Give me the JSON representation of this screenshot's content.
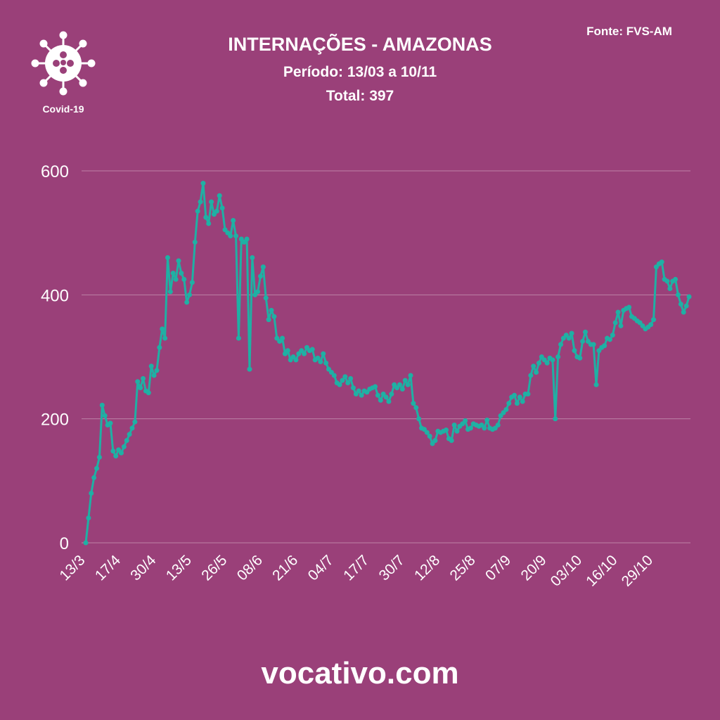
{
  "chart_data": {
    "type": "line",
    "title": "INTERNAÇÕES - AMAZONAS",
    "subtitle": "Período: 13/03 a 10/11",
    "total": "Total: 397",
    "source": "Fonte: FVS-AM",
    "logo_text": "Covid-19",
    "footer": "vocativo.com",
    "categories": [
      "13/3",
      null,
      null,
      null,
      null,
      null,
      null,
      null,
      null,
      null,
      null,
      null,
      null,
      "17/4",
      null,
      null,
      null,
      null,
      null,
      null,
      null,
      null,
      null,
      null,
      null,
      null,
      "30/4",
      null,
      null,
      null,
      null,
      null,
      null,
      null,
      null,
      null,
      null,
      null,
      null,
      "13/5",
      null,
      null,
      null,
      null,
      null,
      null,
      null,
      null,
      null,
      null,
      null,
      null,
      "26/5",
      null,
      null,
      null,
      null,
      null,
      null,
      null,
      null,
      null,
      null,
      null,
      null,
      "08/6",
      null,
      null,
      null,
      null,
      null,
      null,
      null,
      null,
      null,
      null,
      null,
      null,
      "21/6",
      null,
      null,
      null,
      null,
      null,
      null,
      null,
      null,
      null,
      null,
      null,
      null,
      "04/7",
      null,
      null,
      null,
      null,
      null,
      null,
      null,
      null,
      null,
      null,
      null,
      null,
      "17/7",
      null,
      null,
      null,
      null,
      null,
      null,
      null,
      null,
      null,
      null,
      null,
      null,
      "30/7",
      null,
      null,
      null,
      null,
      null,
      null,
      null,
      null,
      null,
      null,
      null,
      null,
      "12/8",
      null,
      null,
      null,
      null,
      null,
      null,
      null,
      null,
      null,
      null,
      null,
      null,
      "25/8",
      null,
      null,
      null,
      null,
      null,
      null,
      null,
      null,
      null,
      null,
      null,
      null,
      "07/9",
      null,
      null,
      null,
      null,
      null,
      null,
      null,
      null,
      null,
      null,
      null,
      null,
      "20/9",
      null,
      null,
      null,
      null,
      null,
      null,
      null,
      null,
      null,
      null,
      null,
      null,
      "03/10",
      null,
      null,
      null,
      null,
      null,
      null,
      null,
      null,
      null,
      null,
      null,
      null,
      "16/10",
      null,
      null,
      null,
      null,
      null,
      null,
      null,
      null,
      null,
      null,
      null,
      null,
      "29/10",
      null,
      null,
      null,
      null,
      null,
      null,
      null,
      null,
      null,
      null,
      null,
      null,
      null
    ],
    "values": [
      0,
      40,
      80,
      105,
      120,
      138,
      222,
      205,
      190,
      193,
      148,
      140,
      150,
      145,
      155,
      165,
      175,
      185,
      195,
      260,
      250,
      265,
      245,
      242,
      285,
      270,
      278,
      315,
      345,
      330,
      460,
      405,
      435,
      425,
      455,
      435,
      425,
      388,
      400,
      420,
      485,
      535,
      550,
      580,
      525,
      515,
      550,
      530,
      535,
      560,
      540,
      505,
      500,
      495,
      520,
      495,
      330,
      490,
      485,
      490,
      280,
      460,
      400,
      405,
      430,
      445,
      395,
      360,
      375,
      365,
      330,
      325,
      330,
      305,
      310,
      295,
      300,
      295,
      305,
      310,
      305,
      315,
      310,
      312,
      295,
      298,
      292,
      305,
      290,
      280,
      275,
      270,
      258,
      255,
      262,
      268,
      258,
      265,
      250,
      240,
      245,
      238,
      245,
      243,
      248,
      250,
      252,
      238,
      230,
      240,
      235,
      228,
      240,
      255,
      250,
      255,
      248,
      262,
      255,
      270,
      225,
      218,
      200,
      185,
      183,
      178,
      172,
      160,
      165,
      180,
      178,
      180,
      182,
      168,
      165,
      190,
      180,
      188,
      192,
      197,
      183,
      185,
      192,
      190,
      188,
      190,
      185,
      198,
      185,
      183,
      185,
      190,
      205,
      210,
      215,
      225,
      235,
      238,
      225,
      235,
      228,
      240,
      240,
      270,
      285,
      275,
      290,
      300,
      295,
      290,
      298,
      295,
      200,
      300,
      320,
      330,
      335,
      330,
      338,
      310,
      300,
      298,
      325,
      340,
      325,
      320,
      320,
      255,
      310,
      315,
      318,
      330,
      328,
      335,
      355,
      372,
      350,
      375,
      378,
      380,
      365,
      362,
      358,
      355,
      350,
      345,
      348,
      352,
      360,
      445,
      450,
      453,
      425,
      422,
      410,
      422,
      425,
      400,
      385,
      372,
      382,
      397
    ],
    "color": "#1fb0a4",
    "ylim": [
      0,
      600
    ],
    "yticks": [
      0,
      200,
      400,
      600
    ],
    "grid": true
  }
}
